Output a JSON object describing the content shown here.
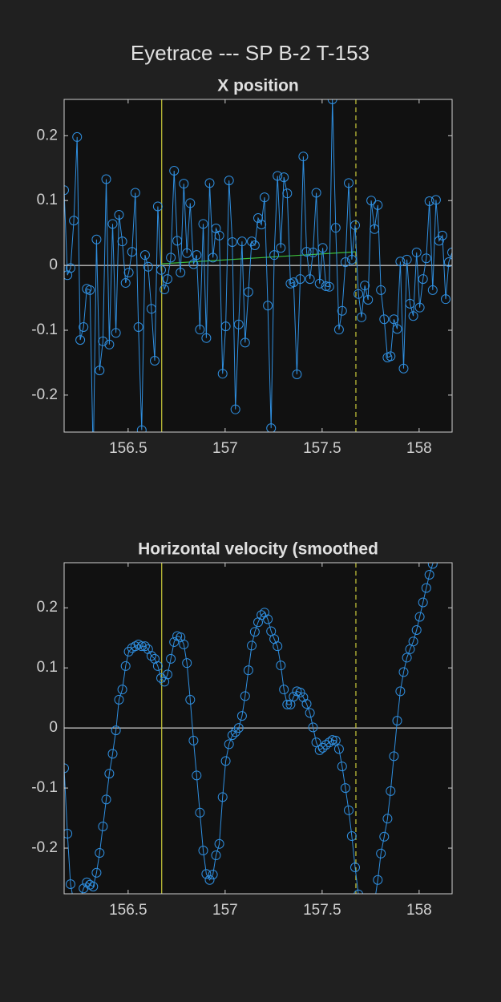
{
  "title": "Eyetrace --- SP B-2 T-153",
  "chart_data": [
    {
      "type": "line",
      "title": "X position",
      "marker": "circle",
      "xlim": [
        156.17,
        158.17
      ],
      "ylim": [
        -0.257,
        0.256
      ],
      "xticks": [
        156.5,
        157,
        157.5,
        158
      ],
      "yticks": [
        -0.2,
        -0.1,
        0,
        0.1,
        0.2
      ],
      "zero_line": 0,
      "vlines": [
        {
          "x": 156.673,
          "style": "solid",
          "color": "#c8c83a"
        },
        {
          "x": 157.674,
          "style": "dashed",
          "color": "#c8c83a"
        }
      ],
      "fit_line": {
        "x": [
          156.673,
          157.674
        ],
        "values": [
          0.0025,
          0.021
        ],
        "color": "#3cbf3c"
      },
      "series": [
        {
          "color": "#2f8fe0",
          "x": [
            156.17,
            156.187,
            156.203,
            156.22,
            156.237,
            156.253,
            156.27,
            156.287,
            156.303,
            156.32,
            156.337,
            156.353,
            156.37,
            156.387,
            156.403,
            156.42,
            156.437,
            156.453,
            156.47,
            156.487,
            156.503,
            156.52,
            156.537,
            156.553,
            156.57,
            156.587,
            156.603,
            156.62,
            156.637,
            156.653,
            156.67,
            156.687,
            156.703,
            156.72,
            156.737,
            156.753,
            156.77,
            156.787,
            156.803,
            156.82,
            156.837,
            156.853,
            156.87,
            156.887,
            156.903,
            156.92,
            156.937,
            156.953,
            156.97,
            156.987,
            157.003,
            157.02,
            157.037,
            157.053,
            157.07,
            157.087,
            157.103,
            157.12,
            157.137,
            157.153,
            157.17,
            157.187,
            157.203,
            157.22,
            157.237,
            157.253,
            157.27,
            157.287,
            157.303,
            157.32,
            157.337,
            157.353,
            157.37,
            157.387,
            157.403,
            157.42,
            157.437,
            157.453,
            157.47,
            157.487,
            157.503,
            157.52,
            157.537,
            157.553,
            157.57,
            157.587,
            157.603,
            157.62,
            157.637,
            157.653,
            157.67,
            157.687,
            157.703,
            157.72,
            157.737,
            157.753,
            157.77,
            157.787,
            157.803,
            157.82,
            157.837,
            157.853,
            157.87,
            157.887,
            157.903,
            157.92,
            157.937,
            157.953,
            157.97,
            157.987,
            158.003,
            158.02,
            158.037,
            158.053,
            158.07,
            158.087,
            158.103,
            158.12,
            158.137,
            158.153,
            158.17
          ],
          "values": [
            0.116,
            -0.015,
            -0.004,
            0.069,
            0.198,
            -0.115,
            -0.095,
            -0.036,
            -0.038,
            -0.3,
            0.04,
            -0.162,
            -0.117,
            0.133,
            -0.122,
            0.064,
            -0.104,
            0.078,
            0.037,
            -0.027,
            -0.011,
            0.021,
            0.112,
            -0.095,
            -0.254,
            0.016,
            -0.002,
            -0.067,
            -0.147,
            0.091,
            -0.007,
            -0.037,
            -0.021,
            0.012,
            0.146,
            0.038,
            -0.011,
            0.126,
            0.019,
            0.096,
            0.002,
            0.016,
            -0.099,
            0.064,
            -0.112,
            0.127,
            0.012,
            0.057,
            0.046,
            -0.167,
            -0.094,
            0.131,
            0.036,
            -0.222,
            -0.091,
            0.037,
            -0.119,
            -0.041,
            0.037,
            0.031,
            0.073,
            0.063,
            0.105,
            -0.062,
            -0.251,
            0.016,
            0.138,
            0.027,
            0.136,
            0.111,
            -0.028,
            -0.026,
            -0.168,
            -0.021,
            0.168,
            0.021,
            -0.021,
            0.02,
            0.112,
            -0.028,
            0.027,
            -0.032,
            -0.033,
            0.256,
            0.058,
            -0.099,
            -0.07,
            0.005,
            0.127,
            0.009,
            0.062,
            -0.044,
            -0.08,
            -0.031,
            -0.053,
            0.1,
            0.056,
            0.093,
            -0.038,
            -0.083,
            -0.142,
            -0.14,
            -0.083,
            -0.098,
            0.006,
            -0.159,
            0.009,
            -0.059,
            -0.078,
            0.02,
            -0.065,
            -0.021,
            0.011,
            0.099,
            -0.038,
            0.101,
            0.038,
            0.046,
            -0.052,
            0.005,
            0.02
          ]
        }
      ]
    },
    {
      "type": "line",
      "title": "Horizontal velocity (smoothed",
      "marker": "circle",
      "xlim": [
        156.17,
        158.17
      ],
      "ylim": [
        -0.276,
        0.275
      ],
      "xticks": [
        156.5,
        157,
        157.5,
        158
      ],
      "yticks": [
        -0.2,
        -0.1,
        0,
        0.1,
        0.2
      ],
      "zero_line": 0,
      "vlines": [
        {
          "x": 156.673,
          "style": "solid",
          "color": "#c8c83a"
        },
        {
          "x": 157.674,
          "style": "dashed",
          "color": "#c8c83a"
        }
      ],
      "series": [
        {
          "color": "#2f8fe0",
          "x": [
            156.17,
            156.187,
            156.203,
            156.22,
            156.237,
            156.253,
            156.27,
            156.287,
            156.303,
            156.32,
            156.337,
            156.353,
            156.37,
            156.387,
            156.403,
            156.42,
            156.437,
            156.453,
            156.47,
            156.487,
            156.503,
            156.52,
            156.537,
            156.553,
            156.57,
            156.587,
            156.603,
            156.62,
            156.637,
            156.653,
            156.67,
            156.687,
            156.703,
            156.72,
            156.737,
            156.753,
            156.77,
            156.787,
            156.803,
            156.82,
            156.837,
            156.853,
            156.87,
            156.887,
            156.903,
            156.92,
            156.937,
            156.953,
            156.97,
            156.987,
            157.003,
            157.02,
            157.037,
            157.053,
            157.07,
            157.087,
            157.103,
            157.12,
            157.137,
            157.153,
            157.17,
            157.187,
            157.203,
            157.22,
            157.237,
            157.253,
            157.27,
            157.287,
            157.303,
            157.32,
            157.337,
            157.353,
            157.37,
            157.387,
            157.403,
            157.42,
            157.437,
            157.453,
            157.47,
            157.487,
            157.503,
            157.52,
            157.537,
            157.553,
            157.57,
            157.587,
            157.603,
            157.62,
            157.637,
            157.653,
            157.67,
            157.687,
            157.703,
            157.72,
            157.737,
            157.753,
            157.77,
            157.787,
            157.803,
            157.82,
            157.837,
            157.853,
            157.87,
            157.887,
            157.903,
            157.92,
            157.937,
            157.953,
            157.97,
            157.987,
            158.003,
            158.02,
            158.037,
            158.053,
            158.07,
            158.087
          ],
          "values": [
            -0.067,
            -0.176,
            -0.26,
            -0.29,
            -0.3,
            -0.285,
            -0.267,
            -0.257,
            -0.261,
            -0.264,
            -0.241,
            -0.208,
            -0.164,
            -0.119,
            -0.076,
            -0.043,
            -0.004,
            0.047,
            0.064,
            0.103,
            0.127,
            0.133,
            0.136,
            0.139,
            0.136,
            0.136,
            0.131,
            0.12,
            0.115,
            0.103,
            0.083,
            0.077,
            0.089,
            0.115,
            0.143,
            0.153,
            0.151,
            0.139,
            0.108,
            0.047,
            -0.021,
            -0.079,
            -0.141,
            -0.204,
            -0.243,
            -0.253,
            -0.244,
            -0.212,
            -0.193,
            -0.115,
            -0.055,
            -0.027,
            -0.012,
            -0.007,
            0.0,
            0.02,
            0.053,
            0.096,
            0.137,
            0.16,
            0.176,
            0.188,
            0.192,
            0.181,
            0.161,
            0.148,
            0.136,
            0.104,
            0.064,
            0.039,
            0.039,
            0.052,
            0.061,
            0.059,
            0.051,
            0.04,
            0.025,
            0.001,
            -0.024,
            -0.037,
            -0.033,
            -0.028,
            -0.024,
            -0.02,
            -0.021,
            -0.035,
            -0.064,
            -0.1,
            -0.137,
            -0.18,
            -0.232,
            -0.277,
            -0.3,
            -0.32,
            -0.32,
            -0.31,
            -0.29,
            -0.253,
            -0.209,
            -0.181,
            -0.151,
            -0.105,
            -0.047,
            0.012,
            0.061,
            0.093,
            0.117,
            0.131,
            0.144,
            0.163,
            0.185,
            0.209,
            0.233,
            0.255,
            0.273,
            0.29
          ]
        }
      ]
    }
  ]
}
